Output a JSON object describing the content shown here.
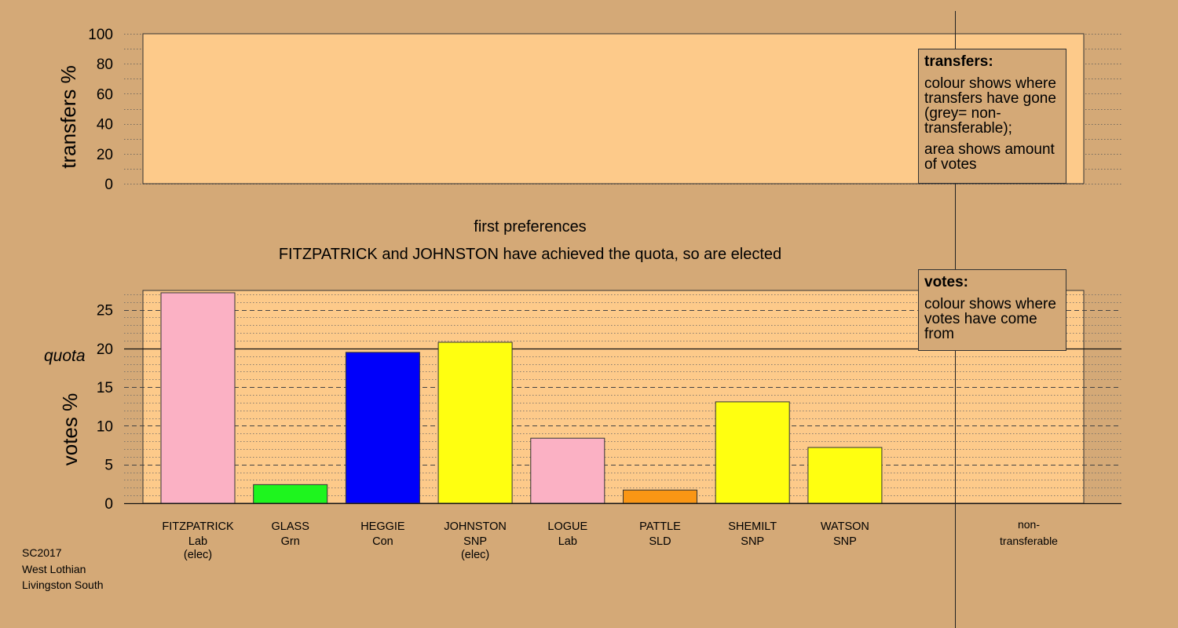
{
  "transfers_panel": {
    "ylabel": "transfers %",
    "ticks": [
      "0",
      "20",
      "40",
      "60",
      "80",
      "100"
    ]
  },
  "stage_title": "first preferences",
  "stage_subtitle": "FITZPATRICK and JOHNSTON have achieved the quota, so are elected",
  "legend_transfers": {
    "title": "transfers:",
    "line1": "colour shows where transfers have gone (grey= non-transferable);",
    "line2": "area shows amount of votes"
  },
  "legend_votes": {
    "title": "votes:",
    "line1": "colour shows where votes have come from"
  },
  "footer": {
    "election": "SC2017",
    "council": "West Lothian",
    "ward": "Livingston South"
  },
  "colors": {
    "background": "#d4a977",
    "plot_area": "#fdca8a",
    "Lab": "#fbb1c4",
    "Grn": "#1ef51e",
    "Con": "#0000fa",
    "SNP": "#ffff10",
    "SLD": "#fa9614"
  },
  "chart_data": [
    {
      "type": "area",
      "panel": "transfers",
      "ylabel": "transfers %",
      "ylim": [
        0,
        100
      ],
      "yticks": [
        0,
        20,
        40,
        60,
        80,
        100
      ],
      "series": []
    },
    {
      "type": "bar",
      "panel": "votes",
      "ylabel": "votes %",
      "ylim": [
        0,
        27.5
      ],
      "yticks": [
        0,
        5,
        10,
        15,
        20,
        25
      ],
      "quota": 20,
      "quota_label": "quota",
      "categories": [
        {
          "name": "FITZPATRICK",
          "party": "Lab",
          "note": "(elec)"
        },
        {
          "name": "GLASS",
          "party": "Grn",
          "note": ""
        },
        {
          "name": "HEGGIE",
          "party": "Con",
          "note": ""
        },
        {
          "name": "JOHNSTON",
          "party": "SNP",
          "note": "(elec)"
        },
        {
          "name": "LOGUE",
          "party": "Lab",
          "note": ""
        },
        {
          "name": "PATTLE",
          "party": "SLD",
          "note": ""
        },
        {
          "name": "SHEMILT",
          "party": "SNP",
          "note": ""
        },
        {
          "name": "WATSON",
          "party": "SNP",
          "note": ""
        }
      ],
      "values": [
        27.2,
        2.4,
        19.5,
        20.8,
        8.4,
        1.7,
        13.1,
        7.2
      ],
      "extra_category": {
        "name": "non-",
        "name2": "transferable",
        "value": 0
      },
      "grid": true
    }
  ]
}
